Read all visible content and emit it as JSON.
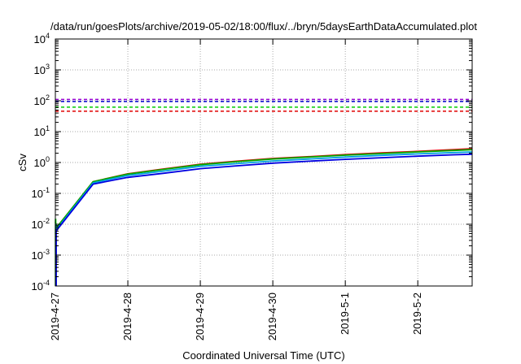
{
  "chart_data": {
    "type": "line",
    "title": "/data/run/goesPlots/archive/2019-05-02/18:00/flux/../bryn/5daysEarthDataAccumulated.plot",
    "xlabel": "Coordinated Universal Time (UTC)",
    "ylabel": "cSv",
    "yscale": "log",
    "ylim": [
      0.0001,
      10000
    ],
    "xlim": [
      "2019-04-27T00:00",
      "2019-05-02T18:00"
    ],
    "grid": true,
    "x_ticks": [
      "2019-4-27",
      "2019-4-28",
      "2019-4-29",
      "2019-4-30",
      "2019-5-1",
      "2019-5-2"
    ],
    "y_ticks": [
      {
        "base": "10",
        "exp": "-4"
      },
      {
        "base": "10",
        "exp": "-3"
      },
      {
        "base": "10",
        "exp": "-2"
      },
      {
        "base": "10",
        "exp": "-1"
      },
      {
        "base": "10",
        "exp": "0"
      },
      {
        "base": "10",
        "exp": "1"
      },
      {
        "base": "10",
        "exp": "2"
      },
      {
        "base": "10",
        "exp": "3"
      },
      {
        "base": "10",
        "exp": "4"
      }
    ],
    "thresholds": [
      {
        "value": 110,
        "color": "#9400d3"
      },
      {
        "value": 95,
        "color": "#0000cc"
      },
      {
        "value": 62,
        "color": "#00cc00"
      },
      {
        "value": 46,
        "color": "#e00000"
      }
    ],
    "series": [
      {
        "color": "#e00000",
        "x": [
          "2019-04-27T00:00",
          "2019-04-27T00:30",
          "2019-04-27T12:30",
          "2019-04-28T00:00",
          "2019-04-28T12:00",
          "2019-04-29T00:00",
          "2019-04-29T12:00",
          "2019-04-30T00:00",
          "2019-04-30T12:00",
          "2019-05-01T00:00",
          "2019-05-01T12:00",
          "2019-05-02T00:00",
          "2019-05-02T12:00",
          "2019-05-02T18:00"
        ],
        "y": [
          0.007,
          0.008,
          0.24,
          0.43,
          0.62,
          0.88,
          1.1,
          1.35,
          1.55,
          1.8,
          2.05,
          2.3,
          2.6,
          2.8
        ]
      },
      {
        "color": "#00aa00",
        "x": [
          "2019-04-27T00:00",
          "2019-04-27T00:30",
          "2019-04-27T12:30",
          "2019-04-28T00:00",
          "2019-04-28T12:00",
          "2019-04-29T00:00",
          "2019-04-29T12:00",
          "2019-04-30T00:00",
          "2019-04-30T12:00",
          "2019-05-01T00:00",
          "2019-05-01T12:00",
          "2019-05-02T00:00",
          "2019-05-02T12:00",
          "2019-05-02T18:00"
        ],
        "y": [
          0.012,
          0.008,
          0.24,
          0.42,
          0.6,
          0.85,
          1.06,
          1.3,
          1.5,
          1.72,
          1.95,
          2.2,
          2.45,
          2.6
        ]
      },
      {
        "color": "#00a0e0",
        "x": [
          "2019-04-27T00:00",
          "2019-04-27T00:30",
          "2019-04-27T12:30",
          "2019-04-28T00:00",
          "2019-04-28T12:00",
          "2019-04-29T00:00",
          "2019-04-29T12:00",
          "2019-04-30T00:00",
          "2019-04-30T12:00",
          "2019-05-01T00:00",
          "2019-05-01T12:00",
          "2019-05-02T00:00",
          "2019-05-02T12:00",
          "2019-05-02T18:00"
        ],
        "y": [
          0.006,
          0.007,
          0.22,
          0.38,
          0.53,
          0.75,
          0.92,
          1.12,
          1.3,
          1.5,
          1.7,
          1.9,
          2.1,
          2.2
        ]
      },
      {
        "color": "#0000e0",
        "x": [
          "2019-04-27T00:00",
          "2019-04-27T00:30",
          "2019-04-27T12:30",
          "2019-04-28T00:00",
          "2019-04-28T12:00",
          "2019-04-29T00:00",
          "2019-04-29T12:00",
          "2019-04-30T00:00",
          "2019-04-30T12:00",
          "2019-05-01T00:00",
          "2019-05-01T12:00",
          "2019-05-02T00:00",
          "2019-05-02T12:00",
          "2019-05-02T18:00"
        ],
        "y": [
          0.005,
          0.0065,
          0.2,
          0.33,
          0.45,
          0.63,
          0.78,
          0.95,
          1.1,
          1.27,
          1.43,
          1.6,
          1.78,
          1.85
        ]
      }
    ],
    "spikes": [
      {
        "x": "2019-04-27T00:05",
        "y": 0.015,
        "color": "#00cc00"
      },
      {
        "x": "2019-04-27T00:10",
        "y": 0.01,
        "color": "#00a0e0"
      },
      {
        "x": "2019-04-27T00:15",
        "y": 0.007,
        "color": "#0000e0"
      }
    ]
  }
}
